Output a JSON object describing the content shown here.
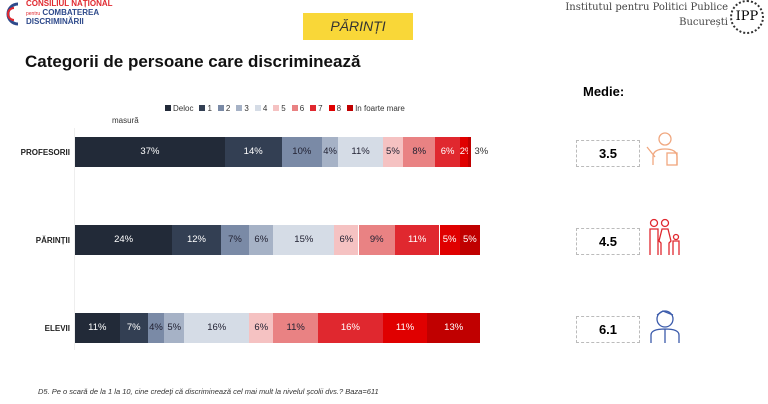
{
  "header": {
    "org_line1": "CONSILIUL NAȚIONAL",
    "org_line2_small": "pentru",
    "org_line2": "COMBATEREA",
    "org_line3": "DISCRIMINĂRII",
    "tag": "PĂRINȚI",
    "ipp_line1": "Institutul pentru Politici Publice",
    "ipp_line2": "București",
    "ipp_logo": "IPP"
  },
  "medie_label": "Medie:",
  "footnote": "D5. Pe o scară de la 1 la 10, cine credeți că discriminează cel mai mult la nivelul școlii dvs.? Baza=611",
  "chart_data": {
    "type": "bar",
    "orientation": "horizontal-stacked-100",
    "title": "Categorii de persoane care discriminează",
    "legend_position": "top",
    "legend": [
      "Deloc",
      "1",
      "2",
      "3",
      "4",
      "5",
      "6",
      "7",
      "8",
      "In foarte mare"
    ],
    "legend_subline": "masură",
    "colors": [
      "#222a38",
      "#333f53",
      "#7a8aa6",
      "#a6b2c6",
      "#d5dce6",
      "#f5c2c2",
      "#e98283",
      "#e0282f",
      "#e00000",
      "#c00000"
    ],
    "categories": [
      "PROFESORII",
      "PĂRINȚII",
      "ELEVII"
    ],
    "values": [
      [
        37,
        14,
        10,
        4,
        11,
        5,
        8,
        6,
        2,
        3
      ],
      [
        24,
        12,
        7,
        6,
        15,
        6,
        9,
        11,
        5,
        5
      ],
      [
        11,
        7,
        4,
        5,
        16,
        6,
        11,
        16,
        11,
        13
      ]
    ],
    "means": [
      "3.5",
      "4.5",
      "6.1"
    ],
    "icons": [
      "teacher-icon",
      "family-icon",
      "student-icon"
    ],
    "icon_colors": [
      "#f0a77f",
      "#e0282f",
      "#3b5bab"
    ]
  }
}
